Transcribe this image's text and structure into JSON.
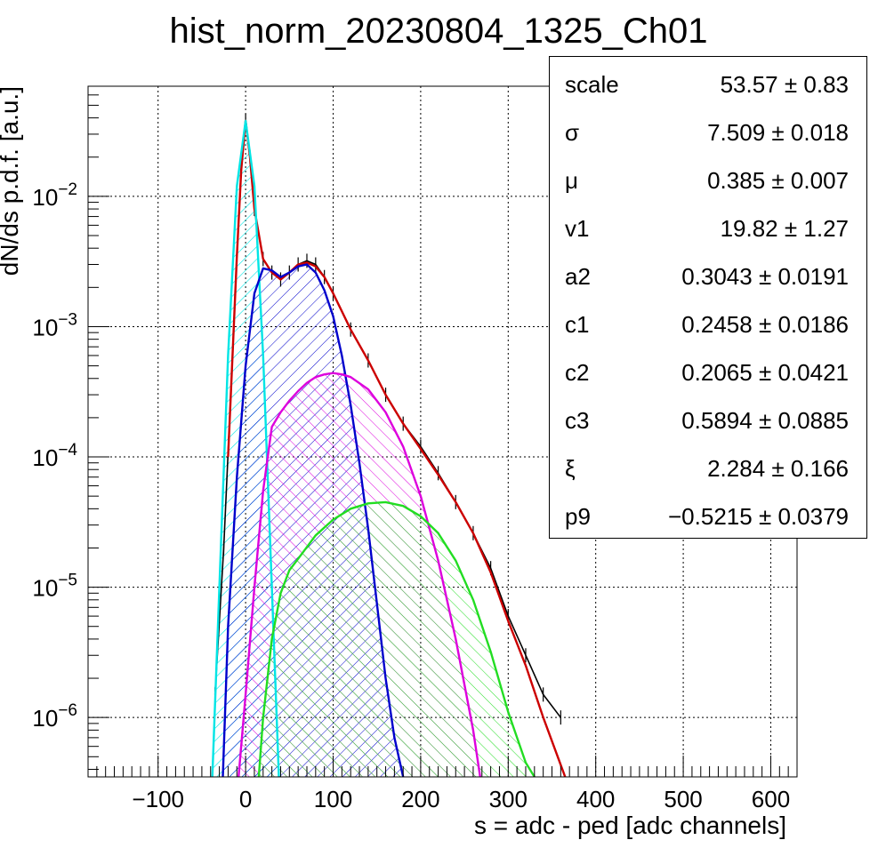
{
  "chart_data": {
    "type": "line",
    "title": "hist_norm_20230804_1325_Ch01",
    "xlabel": "s = adc - ped [adc channels]",
    "ylabel": "dN/ds p.d.f. [a.u.]",
    "xlim": [
      -180,
      630
    ],
    "ylim": [
      3.5e-07,
      0.07
    ],
    "yscale": "log",
    "grid": true,
    "x_ticks": [
      -100,
      0,
      100,
      200,
      300,
      400,
      500,
      600
    ],
    "x_tick_labels": [
      "−100",
      "0",
      "100",
      "200",
      "300",
      "400",
      "500",
      "600"
    ],
    "y_ticks": [
      1e-06,
      1e-05,
      0.0001,
      0.001,
      0.01
    ],
    "y_tick_labels": [
      {
        "base": "10",
        "exp": "−6"
      },
      {
        "base": "10",
        "exp": "−5"
      },
      {
        "base": "10",
        "exp": "−4"
      },
      {
        "base": "10",
        "exp": "−3"
      },
      {
        "base": "10",
        "exp": "−2"
      }
    ],
    "series": [
      {
        "color": "#000000",
        "x": [
          -35,
          -25,
          -15,
          -10,
          -5,
          0,
          5,
          10,
          20,
          30,
          40,
          50,
          60,
          70,
          80,
          90,
          100,
          120,
          140,
          160,
          180,
          200,
          220,
          240,
          260,
          280,
          300,
          320,
          340,
          360
        ],
        "y": [
          1.5e-06,
          2e-05,
          0.0006,
          0.0035,
          0.017,
          0.038,
          0.02,
          0.008,
          0.0033,
          0.0026,
          0.0023,
          0.0026,
          0.003,
          0.0032,
          0.003,
          0.0024,
          0.0018,
          0.00095,
          0.00055,
          0.0003,
          0.00018,
          0.00012,
          7.5e-05,
          4.5e-05,
          2.6e-05,
          1.4e-05,
          6e-06,
          3e-06,
          1.5e-06,
          1e-06
        ]
      },
      {
        "color": "#cc0000",
        "x": [
          -20,
          -15,
          -10,
          -5,
          0,
          5,
          10,
          20,
          30,
          40,
          50,
          60,
          70,
          80,
          90,
          100,
          120,
          140,
          160,
          180,
          200,
          220,
          240,
          260,
          280,
          300,
          320,
          340,
          365
        ],
        "y": [
          0.0001,
          0.0006,
          0.0035,
          0.016,
          0.038,
          0.02,
          0.008,
          0.0033,
          0.0026,
          0.0023,
          0.0026,
          0.003,
          0.0031,
          0.0029,
          0.0024,
          0.0018,
          0.00095,
          0.00055,
          0.0003,
          0.00018,
          0.000115,
          7.3e-05,
          4.5e-05,
          2.6e-05,
          1.3e-05,
          5.5e-06,
          2.5e-06,
          1e-06,
          3.5e-07
        ]
      },
      {
        "color": "#00e5e5",
        "x": [
          -38,
          -30,
          -20,
          -10,
          0,
          10,
          20,
          30,
          38
        ],
        "y": [
          3.5e-07,
          1e-05,
          0.0006,
          0.012,
          0.038,
          0.012,
          0.0006,
          1e-05,
          3.5e-07
        ]
      },
      {
        "color": "#0000cc",
        "x": [
          -26,
          -20,
          -10,
          0,
          10,
          20,
          30,
          40,
          50,
          60,
          70,
          80,
          90,
          100,
          110,
          120,
          130,
          140,
          150,
          160,
          170,
          180
        ],
        "y": [
          3.5e-07,
          5e-06,
          7e-05,
          0.0005,
          0.0018,
          0.0028,
          0.0027,
          0.0024,
          0.0026,
          0.0029,
          0.003,
          0.0026,
          0.0019,
          0.0012,
          0.0006,
          0.00025,
          9e-05,
          2.8e-05,
          7.5e-06,
          2e-06,
          7e-07,
          3.5e-07
        ]
      },
      {
        "color": "#dd00dd",
        "x": [
          -8,
          0,
          10,
          20,
          30,
          40,
          50,
          60,
          70,
          80,
          90,
          100,
          110,
          120,
          140,
          160,
          180,
          200,
          220,
          240,
          260,
          268
        ],
        "y": [
          3.5e-07,
          1.5e-06,
          1e-05,
          5.5e-05,
          0.00017,
          0.00022,
          0.00027,
          0.00032,
          0.00037,
          0.00041,
          0.00043,
          0.00044,
          0.00043,
          0.00041,
          0.00033,
          0.00022,
          0.00012,
          5e-05,
          1.6e-05,
          4e-06,
          8e-07,
          3.5e-07
        ]
      },
      {
        "color": "#22dd22",
        "x": [
          15,
          20,
          30,
          40,
          50,
          60,
          80,
          100,
          120,
          140,
          160,
          180,
          200,
          220,
          240,
          260,
          280,
          300,
          320,
          330
        ],
        "y": [
          3.5e-07,
          1e-06,
          4e-06,
          9e-06,
          1.35e-05,
          1.65e-05,
          2.5e-05,
          3.3e-05,
          4e-05,
          4.4e-05,
          4.5e-05,
          4.2e-05,
          3.5e-05,
          2.6e-05,
          1.6e-05,
          8e-06,
          3.2e-06,
          1.1e-06,
          4.5e-07,
          3.5e-07
        ]
      }
    ]
  },
  "stats": [
    {
      "name": "scale",
      "value": "53.57",
      "pm": "±",
      "error": "0.83"
    },
    {
      "name": "σ",
      "value": "7.509",
      "pm": "±",
      "error": "0.018"
    },
    {
      "name": "μ",
      "value": "0.385",
      "pm": "±",
      "error": "0.007"
    },
    {
      "name": "v1",
      "value": "19.82",
      "pm": "±",
      "error": "1.27"
    },
    {
      "name": "a2",
      "value": "0.3043",
      "pm": "±",
      "error": "0.0191"
    },
    {
      "name": "c1",
      "value": "0.2458",
      "pm": "±",
      "error": "0.0186"
    },
    {
      "name": "c2",
      "value": "0.2065",
      "pm": "±",
      "error": "0.0421"
    },
    {
      "name": "c3",
      "value": "0.5894",
      "pm": "±",
      "error": "0.0885"
    },
    {
      "name": "ξ",
      "value": "2.284",
      "pm": "±",
      "error": "0.166"
    },
    {
      "name": "p9",
      "value": "−0.5215",
      "pm": "±",
      "error": "0.0379"
    }
  ]
}
